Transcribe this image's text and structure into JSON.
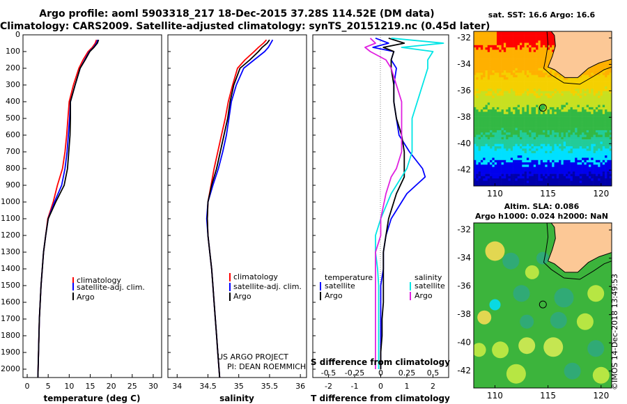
{
  "header": {
    "title_line1": "Argo profile: aoml 5903318_217 18-Dec-2015 37.28S 114.52E (DM data)",
    "title_line2": "Climatology: CARS2009. Satellite-adjusted climatology: synTS_20151219.nc (0.45d later)"
  },
  "colors": {
    "climatology": "#ff0000",
    "satellite": "#0000ff",
    "argo": "#000000",
    "s_satellite": "#00e5e5",
    "s_argo": "#e020e0"
  },
  "chart_data": [
    {
      "type": "line",
      "name": "temperature-panel",
      "xlabel": "temperature (deg C)",
      "ylabel": "",
      "xlim": [
        -1,
        32
      ],
      "ylim": [
        2050,
        0
      ],
      "y_inverted": true,
      "xticks": [
        0,
        5,
        10,
        15,
        20,
        25,
        30
      ],
      "yticks": [
        0,
        100,
        200,
        300,
        400,
        500,
        600,
        700,
        800,
        900,
        1000,
        1100,
        1200,
        1300,
        1400,
        1500,
        1600,
        1700,
        1800,
        1900,
        2000
      ],
      "legend": [
        "climatology",
        "satellite-adj. clim.",
        "Argo"
      ],
      "legend_position": "center-left",
      "series": [
        {
          "name": "climatology",
          "color": "#ff0000",
          "x": [
            16.5,
            16.2,
            15.5,
            14.5,
            13.3,
            12.3,
            11.0,
            10.0,
            9.7,
            9.4,
            9.0,
            8.4,
            7.2,
            6.2,
            4.9,
            4.4,
            3.9,
            3.6,
            3.3,
            3.1,
            2.9,
            2.8,
            2.7,
            2.6,
            2.55
          ],
          "y": [
            30,
            50,
            75,
            100,
            150,
            200,
            300,
            400,
            500,
            600,
            700,
            800,
            900,
            1000,
            1100,
            1200,
            1300,
            1400,
            1500,
            1600,
            1700,
            1800,
            1900,
            2000,
            2050
          ]
        },
        {
          "name": "satellite-adj. clim.",
          "color": "#0000ff",
          "x": [
            16.8,
            16.5,
            15.8,
            14.8,
            13.7,
            12.6,
            11.4,
            10.3,
            10.1,
            9.8,
            9.5,
            9.0,
            8.2,
            6.5,
            5.0,
            4.4,
            3.9,
            3.6,
            3.3,
            3.1,
            2.9,
            2.8,
            2.7,
            2.6,
            2.55
          ],
          "y": [
            30,
            50,
            75,
            100,
            150,
            200,
            300,
            400,
            500,
            600,
            700,
            800,
            900,
            1000,
            1100,
            1200,
            1300,
            1400,
            1500,
            1600,
            1700,
            1800,
            1900,
            2000,
            2050
          ]
        },
        {
          "name": "Argo",
          "color": "#000000",
          "x": [
            17.0,
            16.7,
            15.9,
            14.9,
            13.8,
            12.6,
            11.4,
            10.3,
            10.3,
            10.2,
            9.9,
            9.6,
            8.8,
            6.8,
            5.0,
            4.4,
            3.9,
            3.6,
            3.3,
            3.1,
            2.9,
            2.8,
            2.7,
            2.6,
            2.55
          ],
          "y": [
            30,
            50,
            75,
            100,
            150,
            200,
            300,
            400,
            500,
            600,
            700,
            800,
            900,
            1000,
            1100,
            1200,
            1300,
            1400,
            1500,
            1600,
            1700,
            1800,
            1900,
            2000,
            2050
          ]
        }
      ]
    },
    {
      "type": "line",
      "name": "salinity-panel",
      "xlabel": "salinity",
      "xlim": [
        33.85,
        36.1
      ],
      "ylim": [
        2050,
        0
      ],
      "y_inverted": true,
      "xticks": [
        34,
        34.5,
        35,
        35.5,
        36
      ],
      "xticklabels": [
        "34",
        "34.5",
        "35",
        "35.5",
        "36"
      ],
      "legend": [
        "climatology",
        "satellite-adj. clim.",
        "Argo"
      ],
      "legend_position": "center-right",
      "annotations": [
        "US ARGO PROJECT",
        "PI: DEAN ROEMMICH"
      ],
      "series": [
        {
          "name": "climatology",
          "color": "#ff0000",
          "x": [
            35.45,
            35.4,
            35.32,
            35.25,
            35.1,
            34.98,
            34.9,
            34.83,
            34.78,
            34.72,
            34.66,
            34.6,
            34.55,
            34.5,
            34.49,
            34.5,
            34.53,
            34.56,
            34.58,
            34.6,
            34.62,
            34.64,
            34.66,
            34.68,
            34.69
          ],
          "y": [
            30,
            50,
            75,
            100,
            150,
            200,
            300,
            400,
            500,
            600,
            700,
            800,
            900,
            1000,
            1100,
            1200,
            1300,
            1400,
            1500,
            1600,
            1700,
            1800,
            1900,
            2000,
            2050
          ]
        },
        {
          "name": "satellite-adj. clim.",
          "color": "#0000ff",
          "x": [
            35.55,
            35.52,
            35.48,
            35.42,
            35.25,
            35.08,
            34.96,
            34.88,
            34.84,
            34.8,
            34.74,
            34.67,
            34.58,
            34.5,
            34.48,
            34.5,
            34.53,
            34.56,
            34.58,
            34.6,
            34.62,
            34.64,
            34.66,
            34.68,
            34.69
          ],
          "y": [
            30,
            50,
            75,
            100,
            150,
            200,
            300,
            400,
            500,
            600,
            700,
            800,
            900,
            1000,
            1100,
            1200,
            1300,
            1400,
            1500,
            1600,
            1700,
            1800,
            1900,
            2000,
            2050
          ]
        },
        {
          "name": "Argo",
          "color": "#000000",
          "x": [
            35.5,
            35.46,
            35.38,
            35.32,
            35.18,
            35.02,
            34.92,
            34.86,
            34.82,
            34.76,
            34.7,
            34.64,
            34.56,
            34.5,
            34.49,
            34.5,
            34.53,
            34.56,
            34.58,
            34.6,
            34.62,
            34.64,
            34.66,
            34.68,
            34.69
          ],
          "y": [
            30,
            50,
            75,
            100,
            150,
            200,
            300,
            400,
            500,
            600,
            700,
            800,
            900,
            1000,
            1100,
            1200,
            1300,
            1400,
            1500,
            1600,
            1700,
            1800,
            1900,
            2000,
            2050
          ]
        }
      ]
    },
    {
      "type": "line",
      "name": "difference-panel",
      "xlabel": "T difference from climatology",
      "xlabel_top": "S difference from climatology",
      "xlim": [
        -2.6,
        2.6
      ],
      "ylim": [
        2050,
        0
      ],
      "y_inverted": true,
      "xticks": [
        -2,
        -1,
        0,
        1,
        2
      ],
      "xticks_top": [
        -0.5,
        -0.25,
        0,
        0.25,
        0.5
      ],
      "xticklabels_top": [
        "-0.5",
        "-0.25",
        "0",
        "0.25",
        "0.5"
      ],
      "legend_left_title": "temperature",
      "legend_right_title": "salinity",
      "legend_left": [
        "satellite",
        "Argo"
      ],
      "legend_right": [
        "satellite",
        "Argo"
      ],
      "series": [
        {
          "name": "T satellite",
          "color": "#0000ff",
          "x": [
            -0.2,
            0.3,
            -0.3,
            0.5,
            0.4,
            0.6,
            0.5,
            0.5,
            0.6,
            0.7,
            1.1,
            1.6,
            1.7,
            1.0,
            0.4,
            0.2,
            0.1,
            0.1,
            0.0,
            0.0,
            0.0,
            0.0,
            0.0,
            0.0
          ],
          "y": [
            20,
            50,
            75,
            100,
            150,
            200,
            300,
            400,
            500,
            600,
            700,
            800,
            850,
            950,
            1100,
            1200,
            1300,
            1400,
            1500,
            1600,
            1700,
            1800,
            1900,
            2000
          ]
        },
        {
          "name": "T Argo",
          "color": "#000000",
          "x": [
            0.3,
            0.9,
            0.1,
            0.5,
            0.4,
            0.4,
            0.5,
            0.5,
            0.6,
            0.8,
            0.9,
            0.9,
            0.9,
            0.6,
            0.3,
            0.2,
            0.1,
            0.1,
            0.1,
            0.1,
            0.05,
            0.05,
            0.0,
            0.0
          ],
          "y": [
            20,
            50,
            75,
            100,
            150,
            200,
            300,
            400,
            500,
            600,
            700,
            800,
            850,
            950,
            1100,
            1200,
            1300,
            1400,
            1500,
            1600,
            1700,
            1800,
            1900,
            2000
          ]
        },
        {
          "name": "S satellite",
          "color": "#00e5e5",
          "x": [
            0.1,
            0.6,
            0.2,
            0.5,
            0.45,
            0.45,
            0.4,
            0.35,
            0.3,
            0.3,
            0.3,
            0.25,
            0.2,
            0.1,
            0.0,
            -0.05,
            -0.05,
            -0.03,
            -0.02,
            -0.02,
            -0.02,
            -0.02,
            -0.02,
            -0.02
          ],
          "y": [
            20,
            50,
            75,
            100,
            150,
            200,
            300,
            400,
            500,
            600,
            700,
            800,
            850,
            950,
            1100,
            1200,
            1300,
            1400,
            1500,
            1600,
            1700,
            1800,
            1900,
            2000
          ]
        },
        {
          "name": "S Argo",
          "color": "#e020e0",
          "x": [
            -0.1,
            -0.05,
            -0.15,
            -0.1,
            0.05,
            0.1,
            0.15,
            0.2,
            0.2,
            0.2,
            0.2,
            0.15,
            0.1,
            0.05,
            0.0,
            0.0,
            -0.05,
            -0.05,
            -0.05,
            -0.05,
            -0.05,
            -0.05,
            -0.05,
            -0.05
          ],
          "y": [
            20,
            50,
            75,
            100,
            150,
            200,
            300,
            400,
            500,
            600,
            700,
            800,
            850,
            950,
            1100,
            1200,
            1300,
            1400,
            1500,
            1600,
            1700,
            1800,
            1900,
            2000
          ]
        }
      ]
    },
    {
      "type": "heatmap",
      "name": "sst-map",
      "title": "sat. SST: 16.6 Argo: 16.6",
      "xlim": [
        108,
        121
      ],
      "ylim": [
        -43.2,
        -31.5
      ],
      "xticks": [
        110,
        115,
        120
      ],
      "yticks": [
        -32,
        -34,
        -36,
        -38,
        -40,
        -42
      ],
      "float_position": [
        114.52,
        -37.28
      ]
    },
    {
      "type": "heatmap",
      "name": "sla-map",
      "title_line1": "Altim. SLA: 0.086",
      "title_line2": "Argo h1000: 0.024 h2000: NaN",
      "xlim": [
        108,
        121
      ],
      "ylim": [
        -43.2,
        -31.5
      ],
      "xticks": [
        110,
        115,
        120
      ],
      "yticks": [
        -32,
        -34,
        -36,
        -38,
        -40,
        -42
      ],
      "float_position": [
        114.52,
        -37.28
      ]
    }
  ],
  "footer": {
    "stamp": "©IMOS 14-Dec-2018 13:49:53"
  }
}
